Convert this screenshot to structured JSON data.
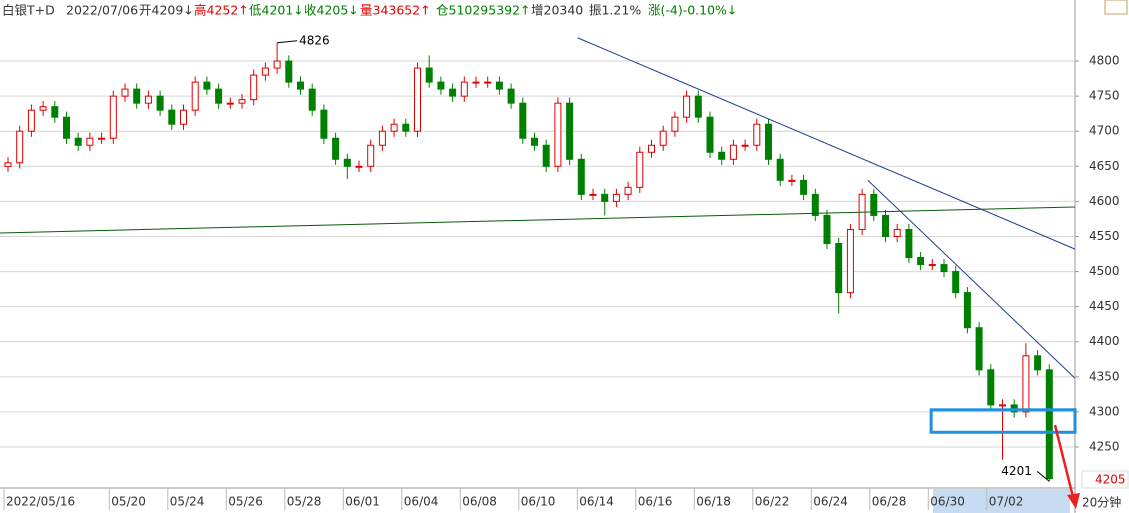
{
  "header": {
    "title": "白银T+D",
    "date": "2022/07/06",
    "open": "开4209↓",
    "high": "高4252↑",
    "low": "低4201↓",
    "close": "收4205↓",
    "volume": "量343652↑",
    "position": "仓510295392↑",
    "increase": "增20340",
    "amplitude": "振1.21%",
    "change": "涨(-4)-0.10%↓"
  },
  "chart_data": {
    "type": "candlestick",
    "categories": [
      "2022/05/16",
      null,
      null,
      null,
      null,
      null,
      null,
      null,
      null,
      "05/20",
      null,
      null,
      null,
      null,
      "05/24",
      null,
      null,
      null,
      null,
      "05/26",
      null,
      null,
      null,
      null,
      "05/28",
      null,
      null,
      null,
      null,
      "06/01",
      null,
      null,
      null,
      null,
      "06/04",
      null,
      null,
      null,
      null,
      "06/08",
      null,
      null,
      null,
      null,
      "06/10",
      null,
      null,
      null,
      null,
      "06/14",
      null,
      null,
      null,
      null,
      "06/16",
      null,
      null,
      null,
      null,
      "06/18",
      null,
      null,
      null,
      null,
      "06/22",
      null,
      null,
      null,
      null,
      "06/24",
      null,
      null,
      null,
      null,
      "06/28",
      null,
      null,
      null,
      null,
      "06/30",
      null,
      null,
      null,
      null,
      "07/02",
      null,
      null,
      null,
      null,
      null
    ],
    "open": [
      4650,
      4655,
      4700,
      4730,
      4735,
      4720,
      4690,
      4680,
      4690,
      4690,
      4750,
      4760,
      4740,
      4750,
      4730,
      4710,
      4730,
      4770,
      4760,
      4740,
      4740,
      4745,
      4780,
      4790,
      4800,
      4770,
      4760,
      4730,
      4690,
      4660,
      4650,
      4650,
      4680,
      4700,
      4710,
      4700,
      4790,
      4770,
      4760,
      4750,
      4770,
      4770,
      4770,
      4760,
      4740,
      4690,
      4680,
      4650,
      4740,
      4660,
      4610,
      4610,
      4600,
      4610,
      4620,
      4670,
      4680,
      4700,
      4720,
      4750,
      4720,
      4670,
      4660,
      4680,
      4680,
      4710,
      4660,
      4630,
      4630,
      4610,
      4580,
      4540,
      4470,
      4560,
      4610,
      4580,
      4550,
      4560,
      4520,
      4510,
      4510,
      4500,
      4470,
      4420,
      4360,
      4310,
      4310,
      4300,
      4380,
      4360
    ],
    "high": [
      4663,
      4708,
      4738,
      4743,
      4743,
      4728,
      4698,
      4698,
      4698,
      4758,
      4768,
      4768,
      4758,
      4758,
      4738,
      4738,
      4778,
      4778,
      4768,
      4748,
      4753,
      4788,
      4798,
      4826,
      4808,
      4778,
      4768,
      4738,
      4698,
      4668,
      4658,
      4688,
      4708,
      4718,
      4718,
      4798,
      4808,
      4778,
      4768,
      4778,
      4778,
      4778,
      4778,
      4768,
      4748,
      4698,
      4688,
      4748,
      4748,
      4668,
      4618,
      4618,
      4618,
      4628,
      4678,
      4688,
      4708,
      4728,
      4758,
      4758,
      4728,
      4678,
      4688,
      4688,
      4718,
      4718,
      4668,
      4638,
      4638,
      4618,
      4588,
      4548,
      4568,
      4618,
      4618,
      4588,
      4568,
      4568,
      4528,
      4518,
      4518,
      4508,
      4478,
      4428,
      4368,
      4318,
      4318,
      4398,
      4388,
      4368
    ],
    "low": [
      4642,
      4647,
      4692,
      4722,
      4712,
      4682,
      4672,
      4672,
      4682,
      4682,
      4742,
      4732,
      4732,
      4722,
      4702,
      4702,
      4722,
      4752,
      4732,
      4732,
      4732,
      4737,
      4772,
      4782,
      4762,
      4752,
      4722,
      4682,
      4652,
      4632,
      4642,
      4642,
      4672,
      4692,
      4692,
      4692,
      4762,
      4752,
      4742,
      4742,
      4762,
      4762,
      4752,
      4732,
      4682,
      4672,
      4642,
      4642,
      4652,
      4602,
      4602,
      4580,
      4592,
      4602,
      4612,
      4662,
      4672,
      4692,
      4712,
      4712,
      4662,
      4652,
      4652,
      4672,
      4672,
      4652,
      4622,
      4622,
      4602,
      4572,
      4532,
      4440,
      4462,
      4552,
      4572,
      4542,
      4542,
      4512,
      4502,
      4502,
      4492,
      4462,
      4412,
      4352,
      4302,
      4232,
      4292,
      4292,
      4352,
      4201
    ],
    "close": [
      4655,
      4700,
      4730,
      4735,
      4720,
      4690,
      4680,
      4690,
      4690,
      4750,
      4760,
      4740,
      4750,
      4730,
      4710,
      4730,
      4770,
      4760,
      4740,
      4740,
      4745,
      4780,
      4790,
      4800,
      4770,
      4760,
      4730,
      4690,
      4660,
      4650,
      4650,
      4680,
      4700,
      4710,
      4700,
      4790,
      4770,
      4760,
      4750,
      4770,
      4770,
      4770,
      4760,
      4740,
      4690,
      4680,
      4650,
      4740,
      4660,
      4610,
      4610,
      4600,
      4610,
      4620,
      4670,
      4680,
      4700,
      4720,
      4750,
      4720,
      4670,
      4660,
      4680,
      4680,
      4710,
      4660,
      4630,
      4630,
      4610,
      4580,
      4540,
      4470,
      4560,
      4610,
      4580,
      4550,
      4560,
      4520,
      4510,
      4510,
      4500,
      4470,
      4420,
      4360,
      4310,
      4310,
      4300,
      4380,
      4360,
      4205
    ],
    "up_color": "#e00000",
    "down_color": "#008000",
    "ylim": [
      4193,
      4887
    ],
    "yticks": [
      4250,
      4300,
      4350,
      4400,
      4450,
      4500,
      4550,
      4600,
      4650,
      4700,
      4750,
      4800
    ],
    "grid": true,
    "annotations": [
      {
        "x": 23,
        "value": 4826
      },
      {
        "x": 89,
        "value": 4201
      }
    ],
    "last_price": 4205,
    "period": "20分钟",
    "trend_lines": [
      {
        "x": [
          48.7,
          91.2
        ],
        "y": [
          4833,
          4532
        ],
        "color": "#1f3f8f"
      },
      {
        "x": [
          73.5,
          91.2
        ],
        "y": [
          4630,
          4348
        ],
        "color": "#1f3f8f"
      },
      {
        "x": [
          -0.7,
          91.2
        ],
        "y": [
          4555,
          4592
        ],
        "color": "#0a5a0a"
      }
    ],
    "highlight_box": {
      "x": [
        78.9,
        91.5
      ],
      "y": [
        4271,
        4303
      ],
      "color": "#1e90dd"
    }
  }
}
